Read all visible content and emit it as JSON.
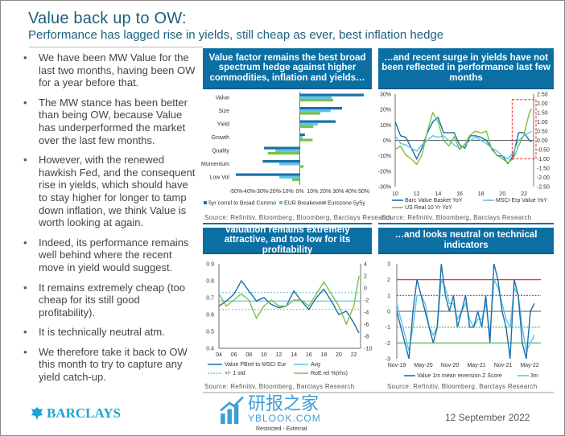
{
  "header": {
    "title": "Value back up to OW:",
    "subtitle": "Performance has lagged rise in yields, still cheap as ever, best inflation hedge"
  },
  "bullets": [
    "We have been MW Value for the last two months, having been OW for a year before that.",
    "The MW stance has been better than being OW, because Value has underperformed the market over the last few months.",
    "However, with the renewed hawkish Fed, and the consequent rise in yields, which should have to stay higher for longer to tamp down inflation, we think Value is worth looking at again.",
    "Indeed, its performance remains well behind where the recent move in yield would suggest.",
    "It remains extremely cheap (too cheap for its still good profitability).",
    "It is technically neutral atm.",
    "We therefore take it back to OW this month to try to capture any yield catch-up."
  ],
  "panels": [
    {
      "title": "Value factor remains the best broad spectrum hedge against higher commodities, inflation and yields…",
      "source": "Source: Refinitiv, Bloomberg, Bloomberg, Barclays Research"
    },
    {
      "title": "…and recent surge in yields have not been reflected in performance last few months",
      "source": "Source: Refinitiv, Bloomberg, Barclays Research"
    },
    {
      "title": "Valuation remains extremely attractive, and too low for its profitability",
      "source": "Source: Refinitiv, Bloomberg, Barclays Research"
    },
    {
      "title": "…and looks neutral on technical indicators",
      "source": "Source: Refinitiv, Bloomberg, Barclays Research"
    }
  ],
  "footer": {
    "logo_text": "BARCLAYS",
    "date": "12 September 2022",
    "classification": "Restricted - External",
    "watermark_cn": "研报之家",
    "watermark_en": "YBLOOK.COM"
  },
  "colors": {
    "dark_blue": "#1a6fa8",
    "light_blue": "#5bc3ec",
    "green": "#7ac143",
    "red": "#e02020",
    "header_blue": "#0b6fa4"
  },
  "chart_data": [
    {
      "type": "bar",
      "orientation": "horizontal",
      "categories": [
        "Value",
        "Size",
        "Yield",
        "Growth",
        "Quality",
        "Momentum",
        "Low Vol"
      ],
      "series": [
        {
          "name": "5yr correl to Broad Commo",
          "color": "#1a6fa8",
          "values": [
            50,
            33,
            28,
            4,
            -28,
            -29,
            -50
          ]
        },
        {
          "name": "EUR Breakeven",
          "color": "#5bc3ec",
          "values": [
            25,
            24,
            14,
            2,
            -19,
            -16,
            -16
          ]
        },
        {
          "name": "Eurozone 5y5y",
          "color": "#7ac143",
          "values": [
            26,
            16,
            10.5,
            10,
            -25,
            3,
            -6
          ]
        }
      ],
      "xlim": [
        -50,
        50
      ],
      "xticks": [
        "-50%",
        "-40%",
        "-30%",
        "-20%",
        "-10%",
        "0%",
        "10%",
        "20%",
        "30%",
        "40%",
        "50%"
      ],
      "legend": "bottom"
    },
    {
      "type": "line",
      "x": [
        2010,
        2010.5,
        2011,
        2011.5,
        2012,
        2012.5,
        2013,
        2013.5,
        2014,
        2014.5,
        2015,
        2015.5,
        2016,
        2016.5,
        2017,
        2017.5,
        2018,
        2018.5,
        2019,
        2019.5,
        2020,
        2020.5,
        2021,
        2021.5,
        2022,
        2022.5,
        2022.7
      ],
      "series": [
        {
          "name": "Barc Value Basket YoY",
          "color": "#1a6fa8",
          "axis": "left",
          "values": [
            12,
            3,
            2,
            -5,
            -12,
            -5,
            5,
            12,
            15,
            5,
            5,
            5,
            -3,
            -5,
            3,
            3,
            2,
            0,
            -5,
            -10,
            -10,
            -15,
            -10,
            5,
            5,
            0,
            -1
          ]
        },
        {
          "name": "MSCI Erp Value YoY",
          "color": "#5bc3ec",
          "axis": "left",
          "values": [
            3,
            -2,
            -3,
            -5,
            -7,
            -3,
            0,
            3,
            2,
            3,
            0,
            -3,
            -5,
            -3,
            0,
            2,
            0,
            -2,
            -5,
            -7,
            -10,
            -12,
            -8,
            0,
            3,
            5,
            6
          ]
        },
        {
          "name": "US Real 10 Yr YoY",
          "color": "#7ac143",
          "axis": "right",
          "values": [
            -0.5,
            -0.3,
            -0.8,
            -1,
            -1.3,
            -0.8,
            0.5,
            1.5,
            1.0,
            0,
            -0.3,
            0.2,
            -0.5,
            -0.2,
            0.3,
            0.5,
            0.4,
            0.5,
            -0.5,
            -0.8,
            -1,
            -1.2,
            -1.0,
            -0.3,
            0.3,
            1.5,
            1.7
          ]
        }
      ],
      "xticks": [
        "10",
        "12",
        "14",
        "16",
        "18",
        "20",
        "22"
      ],
      "ylim": [
        -30,
        30
      ],
      "yticks": [
        "30%",
        "20%",
        "10%",
        "0%",
        "-10%",
        "-20%",
        "-30%"
      ],
      "y2lim": [
        -2.5,
        2.5
      ],
      "y2ticks": [
        "2.50",
        "2.00",
        "1.50",
        "1.00",
        "0.50",
        "0.00",
        "-0.50",
        "-1.00",
        "-1.50",
        "-2.00",
        "-2.50"
      ],
      "annotation": "red dashed box highlighting 2021-2022"
    },
    {
      "type": "line",
      "x": [
        2004,
        2005,
        2006,
        2007,
        2008,
        2009,
        2010,
        2011,
        2012,
        2013,
        2014,
        2015,
        2016,
        2017,
        2018,
        2019,
        2020,
        2021,
        2022,
        2022.7
      ],
      "series": [
        {
          "name": "Value PBrel to MSCI Eur",
          "color": "#1a6fa8",
          "axis": "left",
          "values": [
            0.65,
            0.68,
            0.72,
            0.8,
            0.74,
            0.68,
            0.7,
            0.66,
            0.64,
            0.65,
            0.74,
            0.68,
            0.63,
            0.7,
            0.75,
            0.68,
            0.6,
            0.62,
            0.55,
            0.49
          ]
        },
        {
          "name": "RoE rel %(rhs)",
          "color": "#7ac143",
          "axis": "right",
          "values": [
            -1,
            -3,
            -2,
            -1,
            -2,
            -5,
            -3,
            -2,
            -3,
            -3,
            -2,
            -2,
            -3,
            -1,
            1,
            -1,
            -3,
            -6,
            -3,
            2
          ]
        }
      ],
      "reference_lines": [
        {
          "name": "Avg",
          "value": 0.68,
          "style": "solid",
          "color": "#5bc3ec"
        },
        {
          "name": "+/- 1 std",
          "values": [
            0.73,
            0.63
          ],
          "style": "dashed",
          "color": "#5bc3ec"
        }
      ],
      "xticks": [
        "04",
        "06",
        "08",
        "10",
        "12",
        "14",
        "16",
        "18",
        "20",
        "22"
      ],
      "ylim": [
        0.4,
        0.9
      ],
      "yticks": [
        "0.9",
        "0.8",
        "0.7",
        "0.6",
        "0.5",
        "0.4"
      ],
      "y2lim": [
        -10,
        4
      ],
      "y2ticks": [
        "4",
        "2",
        "0",
        "-2",
        "-4",
        "-6",
        "-8",
        "-10"
      ]
    },
    {
      "type": "line",
      "series": [
        {
          "name": "Value 1m mean reversion Z Score",
          "color": "#1a6fa8",
          "values": [
            0,
            -1,
            -2,
            -3,
            0,
            2,
            1,
            0,
            -1,
            -2,
            -1,
            3,
            1,
            0,
            1,
            -1,
            0,
            1,
            -1,
            -1,
            0,
            -1,
            1,
            -2,
            3,
            2,
            0,
            -1,
            -3,
            2,
            1,
            -2,
            -3,
            0,
            0.5
          ]
        },
        {
          "name": "3m",
          "color": "#5bc3ec",
          "values": [
            0.5,
            -0.5,
            -1.5,
            -2.5,
            -1,
            1,
            1,
            0.5,
            -1,
            -1.5,
            -1,
            2,
            1.5,
            0.5,
            0.5,
            -0.5,
            0,
            0.5,
            -0.5,
            -1,
            -0.5,
            -0.5,
            0.5,
            -1.5,
            2,
            1.5,
            0.5,
            -0.5,
            -1,
            1.5,
            1,
            -1,
            -2.5,
            -2,
            -1.5
          ]
        }
      ],
      "reference_lines": [
        {
          "value": 2,
          "color": "#e02020",
          "style": "solid"
        },
        {
          "value": 1,
          "color": "#e02020",
          "style": "dotted"
        },
        {
          "value": 0,
          "color": "#555555",
          "style": "solid"
        },
        {
          "value": -1,
          "color": "#3cb043",
          "style": "dotted"
        },
        {
          "value": -2,
          "color": "#3cb043",
          "style": "solid"
        }
      ],
      "xticks": [
        "Nov-19",
        "May-20",
        "Nov-20",
        "May-21",
        "Nov-21",
        "May-22"
      ],
      "ylim": [
        -3,
        3
      ],
      "yticks": [
        "3",
        "2",
        "1",
        "0",
        "-1",
        "-2",
        "-3"
      ]
    }
  ]
}
